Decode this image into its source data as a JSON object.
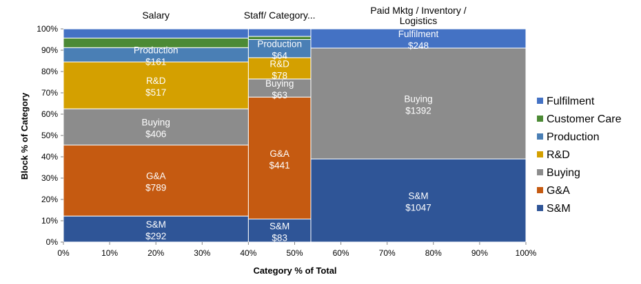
{
  "chart_data": {
    "type": "mekko",
    "xlabel": "Category % of Total",
    "ylabel": "Block % of Category",
    "xlim": [
      0,
      100
    ],
    "ylim": [
      0,
      100
    ],
    "x_ticks": [
      "0%",
      "10%",
      "20%",
      "30%",
      "40%",
      "50%",
      "60%",
      "70%",
      "80%",
      "90%",
      "100%"
    ],
    "y_ticks": [
      "0%",
      "10%",
      "20%",
      "30%",
      "40%",
      "50%",
      "60%",
      "70%",
      "80%",
      "90%",
      "100%"
    ],
    "legend_position": "right",
    "legend": [
      "Fulfilment",
      "Customer Care",
      "Production",
      "R&D",
      "Buying",
      "G&A",
      "S&M"
    ],
    "colors": {
      "S&M": "#2f5597",
      "G&A": "#c55a11",
      "Buying": "#8c8c8c",
      "R&D": "#d4a000",
      "Production": "#4a7fb5",
      "Customer Care": "#4c8a35",
      "Fulfilment": "#4472c4"
    },
    "categories": [
      {
        "name": "Salary",
        "title_lines": [
          "Salary"
        ],
        "x_start": 0,
        "x_end": 40,
        "segments": [
          {
            "series": "S&M",
            "pct_start": 0,
            "pct_end": 12.2,
            "label": "S&M",
            "value": "$292"
          },
          {
            "series": "G&A",
            "pct_start": 12.2,
            "pct_end": 45.5,
            "label": "G&A",
            "value": "$789"
          },
          {
            "series": "Buying",
            "pct_start": 45.5,
            "pct_end": 62.5,
            "label": "Buying",
            "value": "$406"
          },
          {
            "series": "R&D",
            "pct_start": 62.5,
            "pct_end": 84.5,
            "label": "R&D",
            "value": "$517"
          },
          {
            "series": "Production",
            "pct_start": 84.5,
            "pct_end": 91.2,
            "label": "Production",
            "value": "$161"
          },
          {
            "series": "Customer Care",
            "pct_start": 91.2,
            "pct_end": 95.7,
            "label": "",
            "value": ""
          },
          {
            "series": "Fulfilment",
            "pct_start": 95.7,
            "pct_end": 100,
            "label": "",
            "value": ""
          }
        ]
      },
      {
        "name": "Staff/ Category...",
        "title_lines": [
          "Staff/ Category..."
        ],
        "x_start": 40,
        "x_end": 53.5,
        "segments": [
          {
            "series": "S&M",
            "pct_start": 0,
            "pct_end": 10.8,
            "label": "S&M",
            "value": "$83"
          },
          {
            "series": "G&A",
            "pct_start": 10.8,
            "pct_end": 68.0,
            "label": "G&A",
            "value": "$441"
          },
          {
            "series": "Buying",
            "pct_start": 68.0,
            "pct_end": 76.5,
            "label": "Buying",
            "value": "$63"
          },
          {
            "series": "R&D",
            "pct_start": 76.5,
            "pct_end": 86.5,
            "label": "R&D",
            "value": "$78"
          },
          {
            "series": "Production",
            "pct_start": 86.5,
            "pct_end": 95.0,
            "label": "Production",
            "value": "$64"
          },
          {
            "series": "Customer Care",
            "pct_start": 95.0,
            "pct_end": 96.5,
            "label": "",
            "value": ""
          },
          {
            "series": "Fulfilment",
            "pct_start": 96.5,
            "pct_end": 100,
            "label": "",
            "value": ""
          }
        ]
      },
      {
        "name": "Paid Mktg / Inventory / Logistics",
        "title_lines": [
          "Paid Mktg / Inventory /",
          "Logistics"
        ],
        "x_start": 53.5,
        "x_end": 100,
        "segments": [
          {
            "series": "S&M",
            "pct_start": 0,
            "pct_end": 39.0,
            "label": "S&M",
            "value": "$1047"
          },
          {
            "series": "Buying",
            "pct_start": 39.0,
            "pct_end": 91.0,
            "label": "Buying",
            "value": "$1392"
          },
          {
            "series": "Fulfilment",
            "pct_start": 91.0,
            "pct_end": 100,
            "label": "Fulfilment",
            "value": "$248"
          }
        ]
      }
    ]
  }
}
